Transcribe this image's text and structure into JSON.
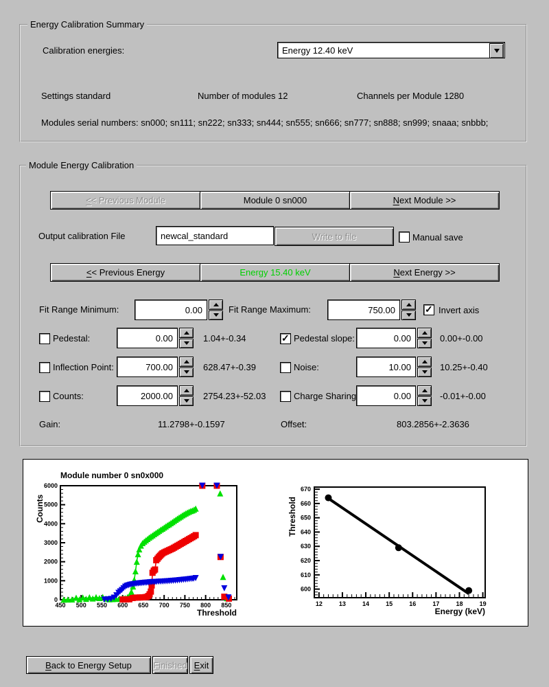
{
  "summary": {
    "title": "Energy Calibration Summary",
    "calibration_energies_label": "Calibration energies:",
    "energy_dropdown_value": "Energy 12.40 keV",
    "settings": "Settings standard",
    "num_modules": "Number of modules 12",
    "channels_per_module": "Channels per Module 1280",
    "serials": "Modules serial numbers: sn000; sn111; sn222; sn333; sn444; sn555; sn666; sn777; sn888; sn999; snaaa; snbbb;"
  },
  "module_cal": {
    "title": "Module Energy Calibration",
    "prev_module": "&<< Previous Module",
    "module_label": "Module 0 sn000",
    "next_module": "&Next Module >>",
    "output_file_label": "Output calibration File",
    "output_file_value": "newcal_standard",
    "write_button": "Write to file",
    "manual_save_label": "Manual save",
    "manual_save_checked": false,
    "prev_energy": "&<< Previous Energy",
    "energy_label": "Energy 15.40 keV",
    "energy_color": "#00d000",
    "next_energy": "&Next Energy >>",
    "fit_min_label": "Fit Range Minimum:",
    "fit_min_value": "0.00",
    "fit_max_label": "Fit Range Maximum:",
    "fit_max_value": "750.00",
    "invert_axis_label": "Invert axis",
    "invert_axis_checked": true,
    "params": [
      {
        "label": "Pedestal:",
        "checked": false,
        "value": "0.00",
        "result": "1.04+-0.34"
      },
      {
        "label": "Pedestal slope:",
        "checked": true,
        "value": "0.00",
        "result": "0.00+-0.00"
      },
      {
        "label": "Inflection Point:",
        "checked": false,
        "value": "700.00",
        "result": "628.47+-0.39"
      },
      {
        "label": "Noise:",
        "checked": false,
        "value": "10.00",
        "result": "10.25+-0.40"
      },
      {
        "label": "Counts:",
        "checked": false,
        "value": "2000.00",
        "result": "2754.23+-52.03"
      },
      {
        "label": "Charge Sharing",
        "checked": false,
        "value": "0.00",
        "result": "-0.01+-0.00"
      }
    ],
    "gain_label": "Gain:",
    "gain_value": "11.2798+-0.1597",
    "offset_label": "Offset:",
    "offset_value": "803.2856+-2.3636"
  },
  "footer": {
    "back": "&Back to Energy Setup",
    "finished": "&Finished",
    "exit": "&Exit"
  },
  "chart_data": [
    {
      "type": "scatter",
      "title": "Module number 0 sn0x000",
      "xlabel": "Threshold",
      "ylabel": "Counts",
      "xlim": [
        450,
        875
      ],
      "ylim": [
        0,
        6000
      ],
      "xticks": [
        450,
        500,
        550,
        600,
        650,
        700,
        750,
        800,
        850
      ],
      "yticks": [
        0,
        1000,
        2000,
        3000,
        4000,
        5000,
        6000
      ],
      "xminor": 10,
      "yminor": 200,
      "series": [
        {
          "name": "energy-1-scurve",
          "color": "#00e000",
          "marker": "triangle-up",
          "connected": true,
          "points": [
            [
              458,
              10
            ],
            [
              468,
              15
            ],
            [
              478,
              20
            ],
            [
              488,
              110
            ],
            [
              496,
              25
            ],
            [
              504,
              120
            ],
            [
              512,
              50
            ],
            [
              520,
              130
            ],
            [
              528,
              70
            ],
            [
              536,
              140
            ],
            [
              544,
              90
            ],
            [
              552,
              150
            ],
            [
              560,
              60
            ],
            [
              568,
              25
            ],
            [
              576,
              35
            ],
            [
              584,
              45
            ],
            [
              592,
              60
            ],
            [
              600,
              70
            ],
            [
              606,
              90
            ],
            [
              612,
              150
            ],
            [
              617,
              250
            ],
            [
              621,
              420
            ],
            [
              625,
              700
            ],
            [
              628,
              1050
            ],
            [
              631,
              1500
            ],
            [
              634,
              2000
            ],
            [
              637,
              2400
            ],
            [
              640,
              2650
            ],
            [
              644,
              2850
            ],
            [
              648,
              2980
            ],
            [
              652,
              3060
            ],
            [
              656,
              3130
            ],
            [
              660,
              3200
            ],
            [
              664,
              3270
            ],
            [
              668,
              3330
            ],
            [
              672,
              3390
            ],
            [
              676,
              3450
            ],
            [
              680,
              3510
            ],
            [
              684,
              3570
            ],
            [
              688,
              3630
            ],
            [
              692,
              3690
            ],
            [
              696,
              3740
            ],
            [
              700,
              3800
            ],
            [
              704,
              3860
            ],
            [
              708,
              3920
            ],
            [
              712,
              3970
            ],
            [
              716,
              4030
            ],
            [
              720,
              4090
            ],
            [
              724,
              4150
            ],
            [
              728,
              4210
            ],
            [
              732,
              4270
            ],
            [
              736,
              4330
            ],
            [
              740,
              4380
            ],
            [
              744,
              4440
            ],
            [
              748,
              4490
            ],
            [
              752,
              4540
            ],
            [
              756,
              4590
            ],
            [
              760,
              4630
            ],
            [
              764,
              4670
            ],
            [
              768,
              4700
            ],
            [
              772,
              4740
            ],
            [
              776,
              4800
            ]
          ],
          "extra_points": [
            [
              792,
              6000
            ],
            [
              827,
              6000
            ],
            [
              835,
              5600
            ],
            [
              842,
              1200
            ],
            [
              852,
              80
            ]
          ]
        },
        {
          "name": "energy-2-scurve",
          "color": "#ee0000",
          "marker": "square",
          "connected": true,
          "points": [
            [
              600,
              15
            ],
            [
              608,
              20
            ],
            [
              616,
              25
            ],
            [
              624,
              90
            ],
            [
              630,
              110
            ],
            [
              636,
              115
            ],
            [
              642,
              120
            ],
            [
              648,
              125
            ],
            [
              654,
              135
            ],
            [
              658,
              150
            ],
            [
              662,
              200
            ],
            [
              665,
              290
            ],
            [
              668,
              430
            ],
            [
              670,
              750
            ],
            [
              672,
              1420
            ],
            [
              675,
              1530
            ],
            [
              678,
              1590
            ],
            [
              681,
              2080
            ],
            [
              684,
              2160
            ],
            [
              687,
              2240
            ],
            [
              690,
              2310
            ],
            [
              693,
              2380
            ],
            [
              696,
              2440
            ],
            [
              700,
              2490
            ],
            [
              704,
              2530
            ],
            [
              708,
              2570
            ],
            [
              712,
              2610
            ],
            [
              716,
              2650
            ],
            [
              720,
              2690
            ],
            [
              724,
              2740
            ],
            [
              728,
              2790
            ],
            [
              732,
              2840
            ],
            [
              736,
              2890
            ],
            [
              740,
              2940
            ],
            [
              744,
              2990
            ],
            [
              748,
              3040
            ],
            [
              752,
              3090
            ],
            [
              756,
              3140
            ],
            [
              760,
              3190
            ],
            [
              764,
              3240
            ],
            [
              768,
              3290
            ],
            [
              772,
              3340
            ],
            [
              776,
              3400
            ]
          ],
          "extra_points": [
            [
              792,
              6000
            ],
            [
              827,
              6000
            ],
            [
              836,
              2250
            ],
            [
              845,
              160
            ],
            [
              856,
              60
            ]
          ]
        },
        {
          "name": "energy-3-scurve",
          "color": "#0000dd",
          "marker": "triangle-down",
          "connected": true,
          "points": [
            [
              556,
              10
            ],
            [
              564,
              20
            ],
            [
              572,
              40
            ],
            [
              579,
              110
            ],
            [
              585,
              230
            ],
            [
              590,
              360
            ],
            [
              594,
              440
            ],
            [
              598,
              510
            ],
            [
              602,
              600
            ],
            [
              606,
              680
            ],
            [
              610,
              730
            ],
            [
              614,
              760
            ],
            [
              618,
              785
            ],
            [
              622,
              805
            ],
            [
              626,
              820
            ],
            [
              630,
              835
            ],
            [
              634,
              848
            ],
            [
              638,
              858
            ],
            [
              642,
              868
            ],
            [
              646,
              877
            ],
            [
              650,
              885
            ],
            [
              654,
              893
            ],
            [
              658,
              901
            ],
            [
              662,
              909
            ],
            [
              666,
              917
            ],
            [
              670,
              924
            ],
            [
              674,
              930
            ],
            [
              678,
              936
            ],
            [
              682,
              941
            ],
            [
              687,
              947
            ],
            [
              692,
              953
            ],
            [
              697,
              959
            ],
            [
              702,
              965
            ],
            [
              707,
              972
            ],
            [
              712,
              980
            ],
            [
              717,
              988
            ],
            [
              722,
              997
            ],
            [
              727,
              1007
            ],
            [
              732,
              1017
            ],
            [
              737,
              1028
            ],
            [
              742,
              1040
            ],
            [
              747,
              1052
            ],
            [
              752,
              1064
            ],
            [
              757,
              1076
            ],
            [
              762,
              1088
            ],
            [
              767,
              1100
            ],
            [
              771,
              1112
            ],
            [
              776,
              1140
            ]
          ],
          "extra_points": [
            [
              792,
              6000
            ],
            [
              827,
              6000
            ],
            [
              836,
              2250
            ],
            [
              845,
              600
            ],
            [
              855,
              120
            ]
          ]
        }
      ]
    },
    {
      "type": "scatter",
      "title": "",
      "xlabel": "Energy (keV)",
      "ylabel": "Threshold",
      "xlim": [
        11.8,
        19.1
      ],
      "ylim": [
        594,
        671.5
      ],
      "xticks": [
        12,
        13,
        14,
        15,
        16,
        17,
        18,
        19
      ],
      "yticks": [
        600,
        610,
        620,
        630,
        640,
        650,
        660,
        670
      ],
      "xminor": 0.2,
      "yminor": 2,
      "series": [
        {
          "name": "calibration-fit-line",
          "color": "#000000",
          "marker": "none",
          "connected": true,
          "linewidth": 4,
          "points": [
            [
              12.4,
              663.6
            ],
            [
              18.4,
              596.8
            ]
          ]
        },
        {
          "name": "calibration-points",
          "color": "#000000",
          "marker": "circle",
          "connected": false,
          "points": [
            [
              12.4,
              664
            ],
            [
              15.4,
              629
            ],
            [
              18.4,
              599
            ]
          ]
        }
      ]
    }
  ]
}
